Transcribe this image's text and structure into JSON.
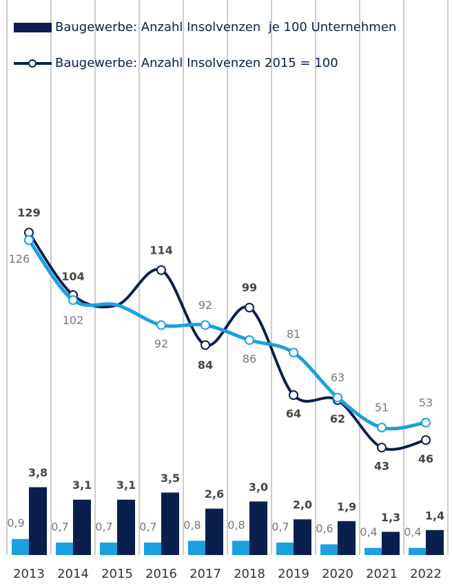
{
  "chart_data": {
    "type": "bar",
    "categories": [
      "2013",
      "2014",
      "2015",
      "2016",
      "2017",
      "2018",
      "2019",
      "2020",
      "2021",
      "2022"
    ],
    "ylim": [
      0,
      200
    ],
    "y2lim": [
      0,
      28
    ],
    "series": [
      {
        "name": "Baugewerbe: Anzahl Insolvenzen  je 100 Unternehmen",
        "type": "bar",
        "axis": "y2",
        "color": "#0a1f4d",
        "values": [
          3.8,
          3.1,
          3.1,
          3.5,
          2.6,
          3.0,
          2.0,
          1.9,
          1.3,
          1.4
        ],
        "value_labels": [
          "3,8",
          "3,1",
          "3,1",
          "3,5",
          "2,6",
          "3,0",
          "2,0",
          "1,9",
          "1,3",
          "1,4"
        ]
      },
      {
        "type": "bar",
        "axis": "y2",
        "color": "#1ba0e0",
        "values": [
          0.9,
          0.7,
          0.7,
          0.7,
          0.8,
          0.8,
          0.7,
          0.6,
          0.4,
          0.4
        ],
        "value_labels": [
          "0,9",
          "0,7",
          "0,7",
          "0,7",
          "0,8",
          "0,8",
          "0,7",
          "0,6",
          "0,4",
          "0,4"
        ]
      },
      {
        "name": "Baugewerbe: Anzahl Insolvenzen 2015 = 100",
        "type": "line",
        "color": "#0a1f4d",
        "values": [
          129,
          104,
          100,
          114,
          84,
          99,
          64,
          62,
          43,
          46
        ],
        "value_labels": [
          "129",
          "104",
          null,
          "114",
          "84",
          "99",
          "64",
          "62",
          "43",
          "46"
        ]
      },
      {
        "type": "line",
        "color": "#1ba0e0",
        "values": [
          126,
          102,
          100,
          92,
          92,
          86,
          81,
          63,
          51,
          53
        ],
        "value_labels": [
          "126",
          "102",
          null,
          "92",
          "92",
          "86",
          "81",
          "63",
          "51",
          "53"
        ]
      }
    ]
  }
}
